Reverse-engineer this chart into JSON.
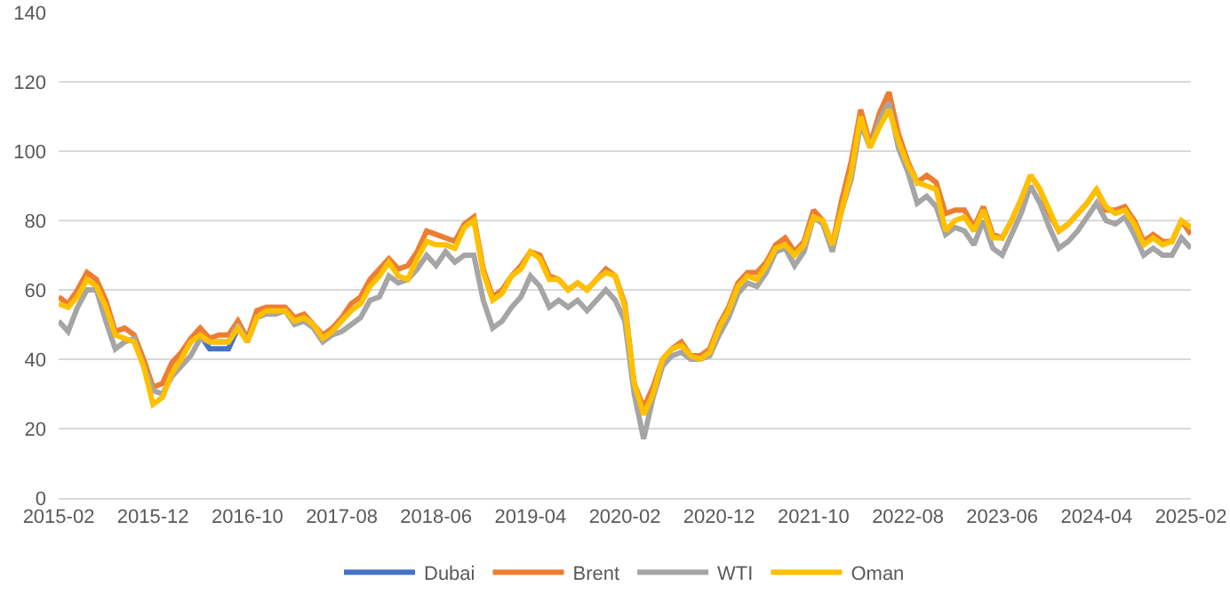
{
  "chart_data": {
    "type": "line",
    "categories": [
      "2015-02",
      null,
      null,
      null,
      null,
      null,
      null,
      null,
      null,
      null,
      "2015-12",
      null,
      null,
      null,
      null,
      null,
      null,
      null,
      null,
      null,
      "2016-10",
      null,
      null,
      null,
      null,
      null,
      null,
      null,
      null,
      null,
      "2017-08",
      null,
      null,
      null,
      null,
      null,
      null,
      null,
      null,
      null,
      "2018-06",
      null,
      null,
      null,
      null,
      null,
      null,
      null,
      null,
      null,
      "2019-04",
      null,
      null,
      null,
      null,
      null,
      null,
      null,
      null,
      null,
      "2020-02",
      null,
      null,
      null,
      null,
      null,
      null,
      null,
      null,
      null,
      "2020-12",
      null,
      null,
      null,
      null,
      null,
      null,
      null,
      null,
      null,
      "2021-10",
      null,
      null,
      null,
      null,
      null,
      null,
      null,
      null,
      null,
      "2022-08",
      null,
      null,
      null,
      null,
      null,
      null,
      null,
      null,
      null,
      "2023-06",
      null,
      null,
      null,
      null,
      null,
      null,
      null,
      null,
      null,
      "2024-04",
      null,
      null,
      null,
      null,
      null,
      null,
      null,
      null,
      null,
      "2025-02"
    ],
    "series": [
      {
        "name": "Dubai",
        "color": "#4472c4",
        "values": [
          null,
          null,
          null,
          null,
          null,
          null,
          null,
          null,
          null,
          null,
          null,
          null,
          null,
          null,
          null,
          47,
          43,
          43,
          43,
          49,
          null,
          null,
          null,
          null,
          null,
          null,
          null,
          null,
          null,
          null,
          null,
          null,
          null,
          null,
          null,
          null,
          null,
          null,
          null,
          null,
          null,
          null,
          null,
          null,
          null,
          null,
          null,
          null,
          null,
          null,
          null,
          null,
          null,
          null,
          null,
          null,
          null,
          null,
          null,
          null,
          null,
          null,
          null,
          null,
          null,
          null,
          null,
          null,
          null,
          null,
          null,
          null,
          null,
          null,
          null,
          null,
          null,
          null,
          null,
          null,
          null,
          null,
          null,
          null,
          null,
          null,
          null,
          null,
          null,
          null,
          null,
          null,
          null,
          null,
          null,
          null,
          null,
          null,
          null,
          null,
          null,
          null,
          null,
          null,
          null,
          null,
          null,
          null,
          null,
          null,
          null,
          null,
          null,
          null,
          null,
          null,
          null,
          null,
          null,
          null,
          null
        ]
      },
      {
        "name": "Brent",
        "color": "#ed7d31",
        "values": [
          58,
          56,
          60,
          65,
          63,
          57,
          48,
          49,
          47,
          40,
          32,
          33,
          39,
          42,
          46,
          49,
          46,
          47,
          47,
          51,
          46,
          54,
          55,
          55,
          55,
          52,
          53,
          50,
          47,
          49,
          52,
          56,
          58,
          63,
          66,
          69,
          66,
          67,
          71,
          77,
          76,
          75,
          74,
          79,
          81,
          66,
          58,
          60,
          64,
          67,
          71,
          70,
          64,
          63,
          60,
          62,
          60,
          63,
          66,
          64,
          56,
          33,
          26,
          32,
          40,
          43,
          45,
          41,
          41,
          43,
          50,
          55,
          62,
          65,
          65,
          68,
          73,
          75,
          71,
          74,
          83,
          80,
          73,
          86,
          97,
          112,
          102,
          111,
          117,
          105,
          97,
          91,
          93,
          91,
          82,
          83,
          83,
          78,
          84,
          76,
          75,
          80,
          86,
          93,
          89,
          82,
          77,
          79,
          82,
          85,
          89,
          83,
          83,
          84,
          80,
          74,
          76,
          74,
          74,
          80,
          76
        ]
      },
      {
        "name": "WTI",
        "color": "#a5a5a5",
        "values": [
          51,
          48,
          55,
          60,
          60,
          51,
          43,
          45,
          46,
          38,
          31,
          30,
          35,
          38,
          41,
          46,
          45,
          45,
          45,
          50,
          45,
          52,
          53,
          53,
          54,
          50,
          51,
          49,
          45,
          47,
          48,
          50,
          52,
          57,
          58,
          64,
          62,
          63,
          66,
          70,
          67,
          71,
          68,
          70,
          70,
          57,
          49,
          51,
          55,
          58,
          64,
          61,
          55,
          57,
          55,
          57,
          54,
          57,
          60,
          57,
          51,
          30,
          17,
          29,
          38,
          41,
          42,
          40,
          40,
          41,
          47,
          52,
          59,
          62,
          61,
          65,
          71,
          72,
          67,
          71,
          81,
          79,
          71,
          83,
          92,
          108,
          101,
          109,
          114,
          101,
          94,
          85,
          87,
          84,
          76,
          78,
          77,
          73,
          80,
          72,
          70,
          76,
          82,
          90,
          85,
          78,
          72,
          74,
          77,
          81,
          85,
          80,
          79,
          81,
          76,
          70,
          72,
          70,
          70,
          75,
          72
        ]
      },
      {
        "name": "Oman",
        "color": "#ffc000",
        "values": [
          56,
          55,
          58,
          63,
          61,
          55,
          47,
          46,
          45,
          38,
          27,
          29,
          36,
          40,
          45,
          47,
          45,
          45,
          45,
          49,
          45,
          52,
          54,
          54,
          54,
          51,
          52,
          50,
          46,
          48,
          51,
          54,
          56,
          61,
          64,
          68,
          64,
          63,
          69,
          74,
          73,
          73,
          72,
          78,
          80,
          65,
          57,
          59,
          64,
          66,
          71,
          69,
          63,
          63,
          60,
          62,
          60,
          63,
          65,
          64,
          55,
          33,
          24,
          30,
          40,
          43,
          44,
          41,
          40,
          42,
          49,
          54,
          61,
          64,
          63,
          67,
          72,
          73,
          70,
          73,
          81,
          80,
          73,
          83,
          94,
          110,
          101,
          107,
          112,
          103,
          96,
          91,
          90,
          89,
          77,
          80,
          81,
          77,
          83,
          75,
          75,
          80,
          86,
          93,
          89,
          83,
          77,
          79,
          82,
          85,
          89,
          84,
          82,
          83,
          79,
          73,
          75,
          73,
          74,
          80,
          78
        ]
      }
    ],
    "ylim": [
      0,
      140
    ],
    "yticks": [
      0,
      20,
      40,
      60,
      80,
      100,
      120,
      140
    ],
    "grid": "y",
    "legend": "bottom",
    "marker": "none",
    "line_style": "solid"
  }
}
